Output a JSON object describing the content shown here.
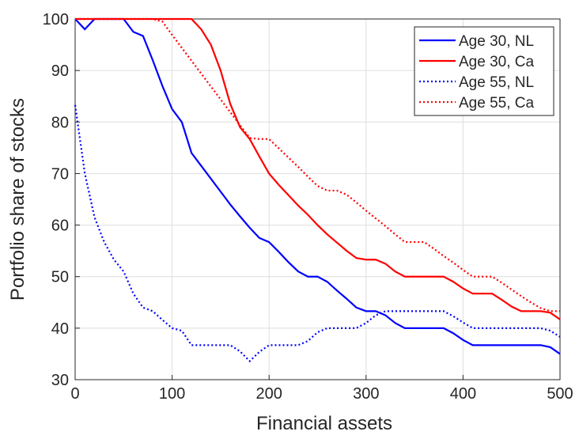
{
  "chart_data": {
    "type": "line",
    "xlabel": "Financial assets",
    "ylabel": "Portfolio share of stocks",
    "x": [
      0,
      10,
      20,
      30,
      40,
      50,
      60,
      70,
      80,
      90,
      100,
      110,
      120,
      130,
      140,
      150,
      160,
      170,
      180,
      190,
      200,
      210,
      220,
      230,
      240,
      250,
      260,
      270,
      280,
      290,
      300,
      310,
      320,
      330,
      340,
      350,
      360,
      370,
      380,
      390,
      400,
      410,
      420,
      430,
      440,
      450,
      460,
      470,
      480,
      490,
      500
    ],
    "series": [
      {
        "name": "Age 30, NL",
        "color": "#0000ff",
        "style": "solid",
        "values": [
          100,
          98,
          100,
          100,
          100,
          100,
          97.5,
          96.7,
          92,
          87,
          82.5,
          80,
          74,
          71.5,
          69,
          66.5,
          64,
          61.7,
          59.5,
          57.5,
          56.7,
          54.8,
          52.8,
          51,
          50,
          50,
          49,
          47.3,
          45.7,
          44,
          43.3,
          43.3,
          42.5,
          41,
          40,
          40,
          40,
          40,
          40,
          39,
          37.7,
          36.7,
          36.7,
          36.7,
          36.7,
          36.7,
          36.7,
          36.7,
          36.7,
          36.3,
          35
        ]
      },
      {
        "name": "Age 30, Ca",
        "color": "#ff0000",
        "style": "solid",
        "values": [
          100,
          100,
          100,
          100,
          100,
          100,
          100,
          100,
          100,
          100,
          100,
          100,
          100,
          98,
          95,
          90,
          83.5,
          79,
          76.7,
          73.3,
          70,
          67.8,
          65.8,
          63.8,
          62,
          60,
          58.2,
          56.6,
          55,
          53.6,
          53.3,
          53.3,
          52.5,
          51,
          50,
          50,
          50,
          50,
          50,
          49,
          47.7,
          46.7,
          46.7,
          46.7,
          45.5,
          44.2,
          43.3,
          43.3,
          43.3,
          43,
          41.7
        ]
      },
      {
        "name": "Age 55, NL",
        "color": "#0000ff",
        "style": "dotted",
        "values": [
          83.3,
          70,
          61.5,
          56.7,
          53.3,
          51,
          46.7,
          44,
          43.3,
          41.6,
          40,
          39.5,
          36.7,
          36.7,
          36.7,
          36.7,
          36.7,
          35.5,
          33.6,
          35.4,
          36.7,
          36.7,
          36.7,
          36.7,
          37.5,
          39.2,
          40,
          40,
          40,
          40,
          41,
          42.5,
          43.3,
          43.3,
          43.3,
          43.3,
          43.3,
          43.3,
          43.3,
          42.3,
          41.1,
          40,
          40,
          40,
          40,
          40,
          40,
          40,
          40,
          39.5,
          38.3
        ]
      },
      {
        "name": "Age 55, Ca",
        "color": "#ff0000",
        "style": "dotted",
        "values": [
          100,
          100,
          100,
          100,
          100,
          100,
          100,
          100,
          100,
          99.5,
          96.9,
          94.4,
          91.9,
          89.4,
          86.9,
          84.4,
          81.9,
          79.4,
          76.9,
          76.7,
          76.7,
          74.9,
          73.1,
          71.3,
          69.4,
          67.6,
          66.7,
          66.7,
          65.9,
          64.4,
          62.8,
          61.3,
          59.8,
          58.2,
          56.7,
          56.7,
          56.7,
          55.4,
          54,
          52.7,
          51.3,
          50,
          50,
          50,
          48.8,
          47.5,
          46.2,
          45,
          43.9,
          43.3,
          43.3
        ]
      }
    ],
    "xlim": [
      0,
      500
    ],
    "ylim": [
      30,
      100
    ],
    "xticks": [
      0,
      100,
      200,
      300,
      400,
      500
    ],
    "yticks": [
      30,
      40,
      50,
      60,
      70,
      80,
      90,
      100
    ],
    "grid": true,
    "legend": "northeast"
  }
}
